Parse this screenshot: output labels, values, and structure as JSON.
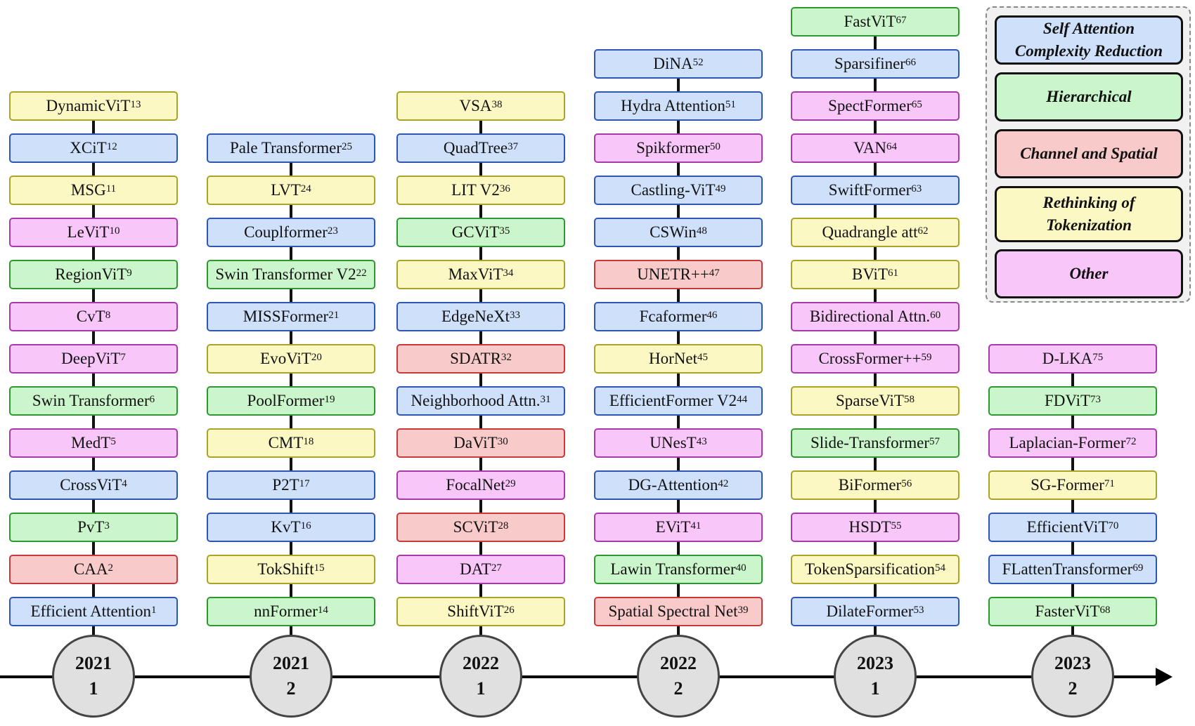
{
  "colors": {
    "self_attention": {
      "fill": "#cfe0fb",
      "border": "#2e56b4"
    },
    "hierarchical": {
      "fill": "#cbf6cb",
      "border": "#2f9632"
    },
    "channel_spatial": {
      "fill": "#f8caca",
      "border": "#c53a3a"
    },
    "rethinking_tokenization": {
      "fill": "#fbf8c4",
      "border": "#a9a32a"
    },
    "other": {
      "fill": "#f8c6f8",
      "border": "#a53aa8"
    }
  },
  "legend": {
    "self_attention_line1": "Self Attention",
    "self_attention_line2": "Complexity Reduction",
    "hierarchical": "Hierarchical",
    "channel_spatial": "Channel and Spatial",
    "rethinking_line1": "Rethinking of",
    "rethinking_line2": "Tokenization",
    "other": "Other"
  },
  "columns": [
    {
      "year": "2021",
      "half": "1",
      "items": [
        {
          "name": "DynamicViT",
          "ref": "13",
          "cat": "rt"
        },
        {
          "name": "XCiT",
          "ref": "12",
          "cat": "sa"
        },
        {
          "name": "MSG",
          "ref": "11",
          "cat": "rt"
        },
        {
          "name": "LeViT",
          "ref": "10",
          "cat": "o"
        },
        {
          "name": "RegionViT",
          "ref": "9",
          "cat": "h"
        },
        {
          "name": "CvT",
          "ref": "8",
          "cat": "o"
        },
        {
          "name": "DeepViT",
          "ref": "7",
          "cat": "o"
        },
        {
          "name": "Swin Transformer",
          "ref": "6",
          "cat": "h"
        },
        {
          "name": "MedT",
          "ref": "5",
          "cat": "o"
        },
        {
          "name": "CrossViT",
          "ref": "4",
          "cat": "sa"
        },
        {
          "name": "PvT",
          "ref": "3",
          "cat": "h"
        },
        {
          "name": "CAA",
          "ref": "2",
          "cat": "cs"
        },
        {
          "name": "Efficient Attention",
          "ref": "1",
          "cat": "sa"
        }
      ]
    },
    {
      "year": "2021",
      "half": "2",
      "items": [
        {
          "name": "Pale Transformer",
          "ref": "25",
          "cat": "sa"
        },
        {
          "name": "LVT",
          "ref": "24",
          "cat": "rt"
        },
        {
          "name": "Couplformer",
          "ref": "23",
          "cat": "sa"
        },
        {
          "name": "Swin Transformer V2",
          "ref": "22",
          "cat": "h"
        },
        {
          "name": "MISSFormer",
          "ref": "21",
          "cat": "sa"
        },
        {
          "name": "EvoViT",
          "ref": "20",
          "cat": "rt"
        },
        {
          "name": "PoolFormer",
          "ref": "19",
          "cat": "h"
        },
        {
          "name": "CMT",
          "ref": "18",
          "cat": "rt"
        },
        {
          "name": "P2T",
          "ref": "17",
          "cat": "sa"
        },
        {
          "name": "KvT",
          "ref": "16",
          "cat": "sa"
        },
        {
          "name": "TokShift",
          "ref": "15",
          "cat": "rt"
        },
        {
          "name": "nnFormer",
          "ref": "14",
          "cat": "h"
        }
      ]
    },
    {
      "year": "2022",
      "half": "1",
      "items": [
        {
          "name": "VSA",
          "ref": "38",
          "cat": "rt"
        },
        {
          "name": "QuadTree",
          "ref": "37",
          "cat": "sa"
        },
        {
          "name": "LIT V2",
          "ref": "36",
          "cat": "rt"
        },
        {
          "name": "GCViT",
          "ref": "35",
          "cat": "h"
        },
        {
          "name": "MaxViT",
          "ref": "34",
          "cat": "rt"
        },
        {
          "name": "EdgeNeXt",
          "ref": "33",
          "cat": "sa"
        },
        {
          "name": "SDATR",
          "ref": "32",
          "cat": "cs"
        },
        {
          "name": "Neighborhood Attn.",
          "ref": "31",
          "cat": "sa"
        },
        {
          "name": "DaViT",
          "ref": "30",
          "cat": "cs"
        },
        {
          "name": "FocalNet",
          "ref": "29",
          "cat": "o"
        },
        {
          "name": "SCViT",
          "ref": "28",
          "cat": "cs"
        },
        {
          "name": "DAT",
          "ref": "27",
          "cat": "o"
        },
        {
          "name": "ShiftViT",
          "ref": "26",
          "cat": "rt"
        }
      ]
    },
    {
      "year": "2022",
      "half": "2",
      "items": [
        {
          "name": "DiNA",
          "ref": "52",
          "cat": "sa"
        },
        {
          "name": "Hydra Attention",
          "ref": "51",
          "cat": "sa"
        },
        {
          "name": "Spikformer",
          "ref": "50",
          "cat": "o"
        },
        {
          "name": "Castling-ViT",
          "ref": "49",
          "cat": "sa"
        },
        {
          "name": "CSWin",
          "ref": "48",
          "cat": "sa"
        },
        {
          "name": "UNETR++",
          "ref": "47",
          "cat": "cs"
        },
        {
          "name": "Fcaformer",
          "ref": "46",
          "cat": "sa"
        },
        {
          "name": "HorNet",
          "ref": "45",
          "cat": "rt"
        },
        {
          "name": "EfficientFormer V2",
          "ref": "44",
          "cat": "sa"
        },
        {
          "name": "UNesT",
          "ref": "43",
          "cat": "o"
        },
        {
          "name": "DG-Attention",
          "ref": "42",
          "cat": "sa"
        },
        {
          "name": "EViT",
          "ref": "41",
          "cat": "o"
        },
        {
          "name": "Lawin Transformer",
          "ref": "40",
          "cat": "h"
        },
        {
          "name": "Spatial Spectral Net",
          "ref": "39",
          "cat": "cs"
        }
      ]
    },
    {
      "year": "2023",
      "half": "1",
      "items": [
        {
          "name": "FastViT",
          "ref": "67",
          "cat": "h"
        },
        {
          "name": "Sparsifiner",
          "ref": "66",
          "cat": "sa"
        },
        {
          "name": "SpectFormer",
          "ref": "65",
          "cat": "o"
        },
        {
          "name": "VAN",
          "ref": "64",
          "cat": "o"
        },
        {
          "name": "SwiftFormer",
          "ref": "63",
          "cat": "sa"
        },
        {
          "name": "Quadrangle att",
          "ref": "62",
          "cat": "rt"
        },
        {
          "name": "BViT",
          "ref": "61",
          "cat": "rt"
        },
        {
          "name": "Bidirectional Attn.",
          "ref": "60",
          "cat": "o"
        },
        {
          "name": "CrossFormer++",
          "ref": "59",
          "cat": "o"
        },
        {
          "name": "SparseViT",
          "ref": "58",
          "cat": "rt"
        },
        {
          "name": "Slide-Transformer",
          "ref": "57",
          "cat": "h"
        },
        {
          "name": "BiFormer",
          "ref": "56",
          "cat": "rt"
        },
        {
          "name": "HSDT",
          "ref": "55",
          "cat": "o"
        },
        {
          "name": "TokenSparsification",
          "ref": "54",
          "cat": "rt"
        },
        {
          "name": "DilateFormer",
          "ref": "53",
          "cat": "sa"
        }
      ]
    },
    {
      "year": "2023",
      "half": "2",
      "items": [
        {
          "name": "D-LKA",
          "ref": "75",
          "cat": "o"
        },
        {
          "name": "FDViT",
          "ref": "73",
          "cat": "h"
        },
        {
          "name": "Laplacian-Former",
          "ref": "72",
          "cat": "o"
        },
        {
          "name": "SG-Former",
          "ref": "71",
          "cat": "rt"
        },
        {
          "name": "EfficientViT",
          "ref": "70",
          "cat": "sa"
        },
        {
          "name": "FLattenTransformer",
          "ref": "69",
          "cat": "sa"
        },
        {
          "name": "FasterViT",
          "ref": "68",
          "cat": "h"
        }
      ]
    }
  ]
}
